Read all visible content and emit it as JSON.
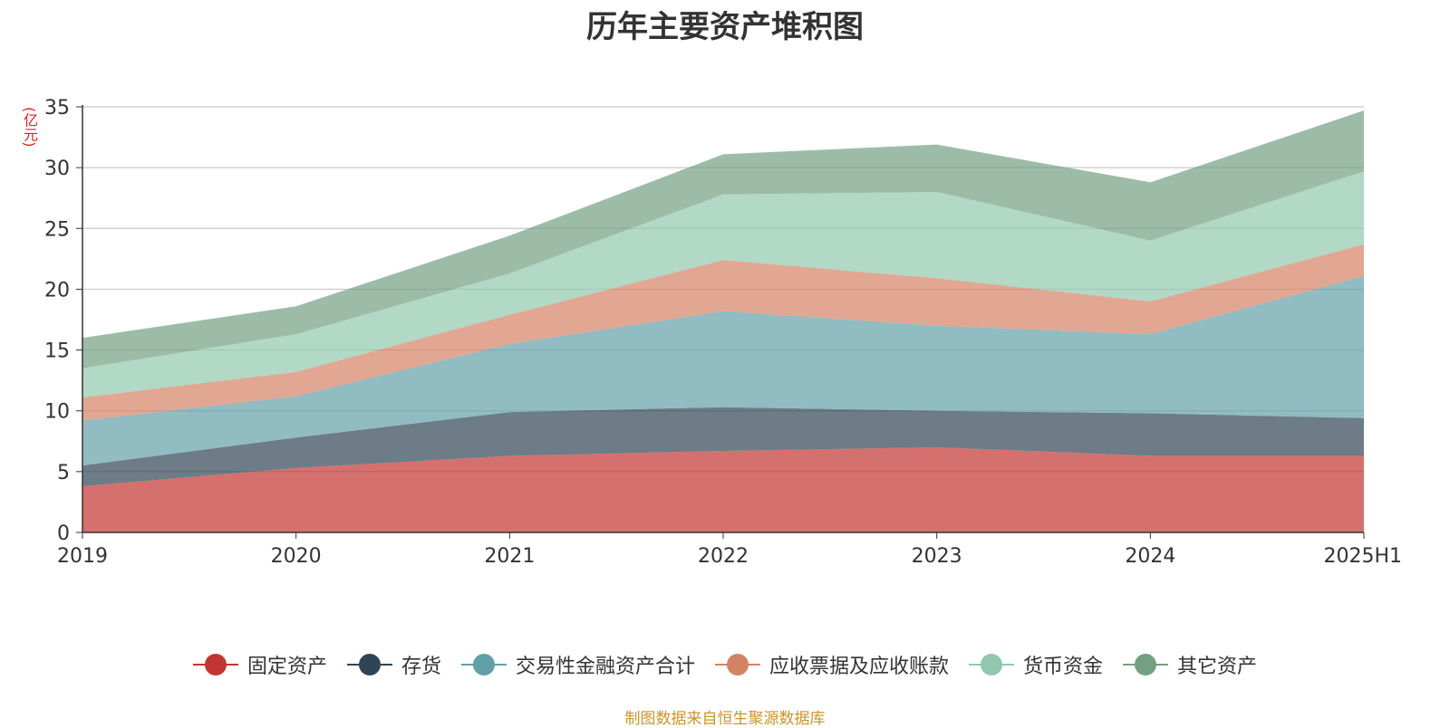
{
  "chart_data": {
    "type": "area",
    "stacked": true,
    "title": "历年主要资产堆积图",
    "unit_label": "(亿元)",
    "x": [
      "2019",
      "2020",
      "2021",
      "2022",
      "2023",
      "2024",
      "2025H1"
    ],
    "ylim": [
      0,
      35
    ],
    "yticks": [
      "0",
      "5",
      "10",
      "15",
      "20",
      "25",
      "30",
      "35"
    ],
    "grid": true,
    "legend_position": "bottom",
    "series": [
      {
        "name": "固定资产",
        "color": "#c23531",
        "values": [
          3.8,
          5.3,
          6.3,
          6.7,
          7.0,
          6.3,
          6.3
        ]
      },
      {
        "name": "存货",
        "color": "#2f4554",
        "values": [
          1.7,
          2.5,
          3.6,
          3.6,
          3.0,
          3.5,
          3.1
        ]
      },
      {
        "name": "交易性金融资产合计",
        "color": "#61a0a8",
        "values": [
          3.7,
          3.4,
          5.6,
          7.9,
          7.0,
          6.5,
          11.7
        ]
      },
      {
        "name": "应收票据及应收账款",
        "color": "#d48265",
        "values": [
          1.9,
          2.0,
          2.4,
          4.2,
          3.9,
          2.7,
          2.6
        ]
      },
      {
        "name": "货币资金",
        "color": "#91c7ae",
        "values": [
          2.4,
          3.1,
          3.4,
          5.4,
          7.1,
          5.0,
          6.0
        ]
      },
      {
        "name": "其它资产",
        "color": "#749f83",
        "values": [
          2.5,
          2.3,
          3.1,
          3.3,
          3.9,
          4.8,
          5.0
        ]
      }
    ],
    "source_note": "制图数据来自恒生聚源数据库"
  }
}
